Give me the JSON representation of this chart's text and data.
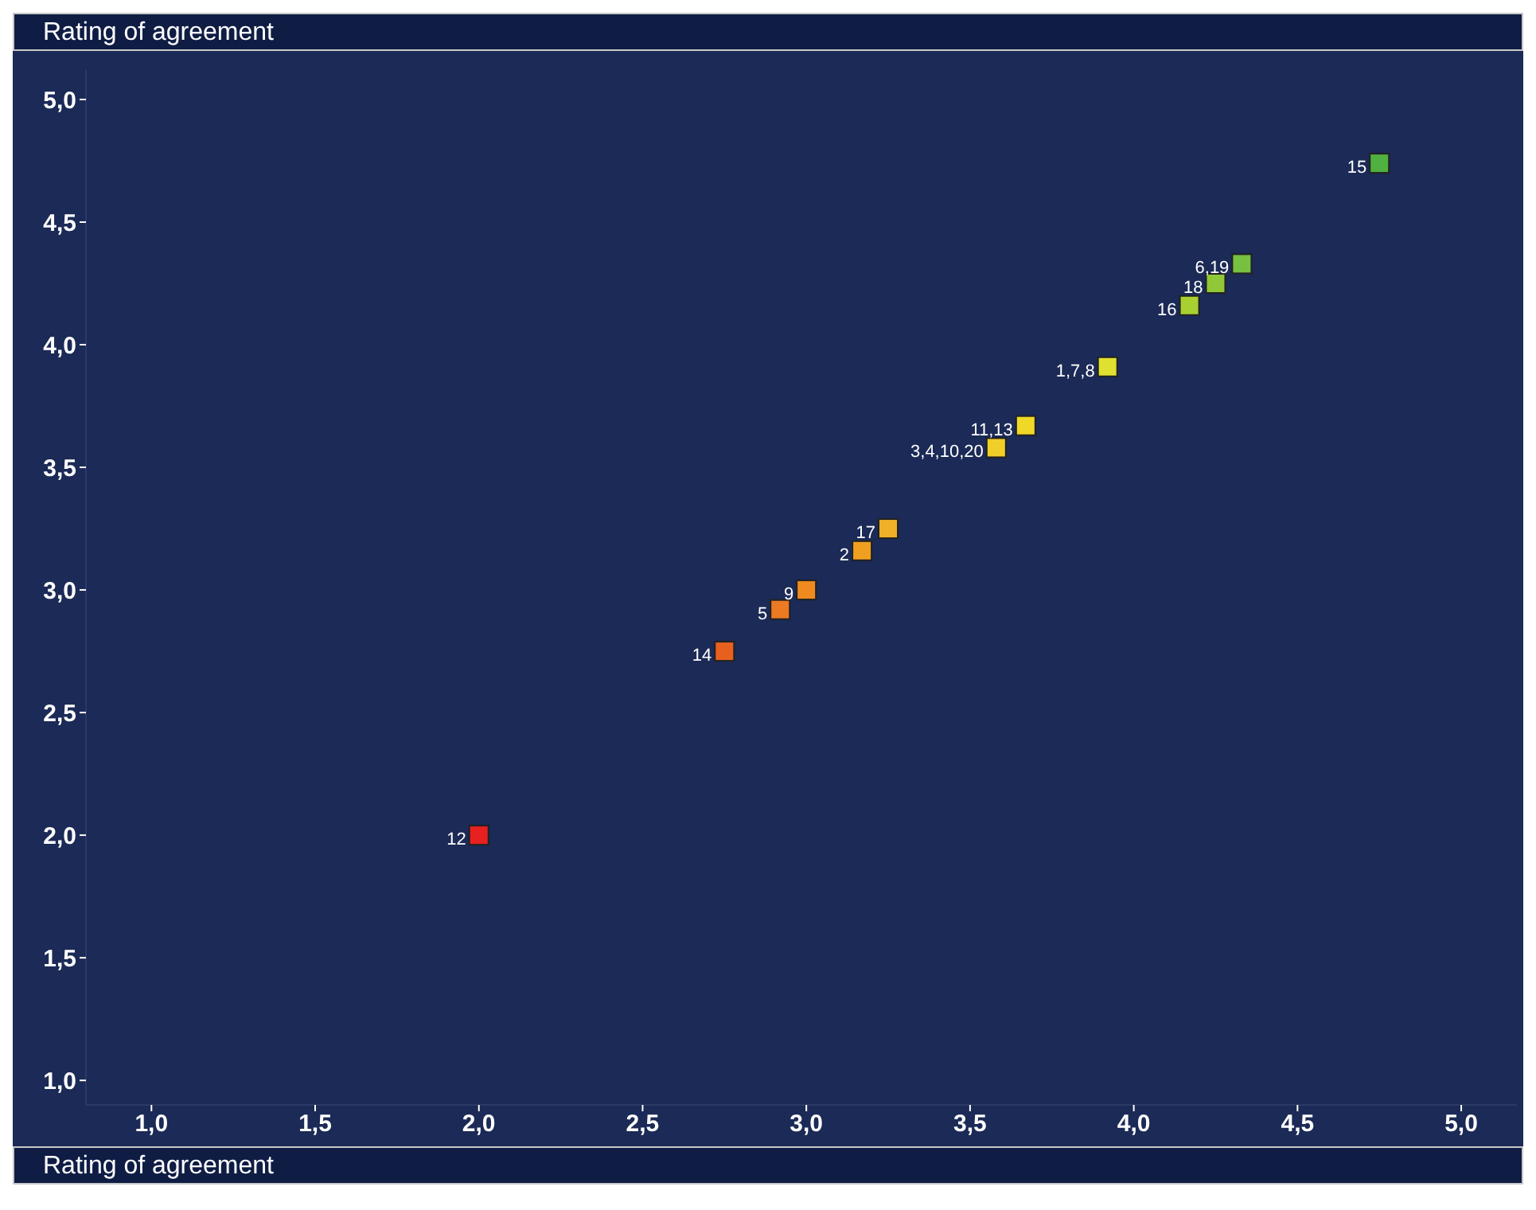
{
  "chart_data": {
    "type": "scatter",
    "xlabel": "Rating of agreement",
    "ylabel": "Rating of agreement",
    "x": [
      2.0,
      2.75,
      2.92,
      3.0,
      3.17,
      3.25,
      3.58,
      3.67,
      3.92,
      4.17,
      4.25,
      4.33,
      4.75
    ],
    "values": [
      2.0,
      2.75,
      2.92,
      3.0,
      3.16,
      3.25,
      3.58,
      3.67,
      3.91,
      4.16,
      4.25,
      4.33,
      4.74
    ],
    "annotations": [
      {
        "text": "12",
        "x": 2.0,
        "y": 2.0
      },
      {
        "text": "14",
        "x": 2.75,
        "y": 2.75
      },
      {
        "text": "5",
        "x": 2.92,
        "y": 2.92
      },
      {
        "text": "9",
        "x": 3.0,
        "y": 3.0
      },
      {
        "text": "2",
        "x": 3.17,
        "y": 3.16
      },
      {
        "text": "17",
        "x": 3.25,
        "y": 3.25
      },
      {
        "text": "3,4,10,20",
        "x": 3.58,
        "y": 3.58
      },
      {
        "text": "11,13",
        "x": 3.67,
        "y": 3.67
      },
      {
        "text": "1,7,8",
        "x": 3.92,
        "y": 3.91
      },
      {
        "text": "16",
        "x": 4.17,
        "y": 4.16
      },
      {
        "text": "18",
        "x": 4.25,
        "y": 4.25
      },
      {
        "text": "6,19",
        "x": 4.33,
        "y": 4.33
      },
      {
        "text": "15",
        "x": 4.75,
        "y": 4.74
      }
    ],
    "colors": [
      "#e82020",
      "#e86020",
      "#ec7a22",
      "#f08a20",
      "#f0a020",
      "#f0b028",
      "#f0d028",
      "#f0d828",
      "#e0e030",
      "#a8d030",
      "#90c838",
      "#78c040",
      "#50b040"
    ],
    "marker": "square",
    "grid": false,
    "xlim": [
      0.8,
      5.17
    ],
    "ylim": [
      0.9,
      5.12
    ],
    "xticks": [
      {
        "value": 1.0,
        "label": "1,0"
      },
      {
        "value": 1.5,
        "label": "1,5"
      },
      {
        "value": 2.0,
        "label": "2,0"
      },
      {
        "value": 2.5,
        "label": "2,5"
      },
      {
        "value": 3.0,
        "label": "3,0"
      },
      {
        "value": 3.5,
        "label": "3,5"
      },
      {
        "value": 4.0,
        "label": "4,0"
      },
      {
        "value": 4.5,
        "label": "4,5"
      },
      {
        "value": 5.0,
        "label": "5,0"
      }
    ],
    "yticks": [
      {
        "value": 1.0,
        "label": "1,0"
      },
      {
        "value": 1.5,
        "label": "1,5"
      },
      {
        "value": 2.0,
        "label": "2,0"
      },
      {
        "value": 2.5,
        "label": "2,5"
      },
      {
        "value": 3.0,
        "label": "3,0"
      },
      {
        "value": 3.5,
        "label": "3,5"
      },
      {
        "value": 4.0,
        "label": "4,0"
      },
      {
        "value": 4.5,
        "label": "4,5"
      },
      {
        "value": 5.0,
        "label": "5,0"
      }
    ]
  }
}
